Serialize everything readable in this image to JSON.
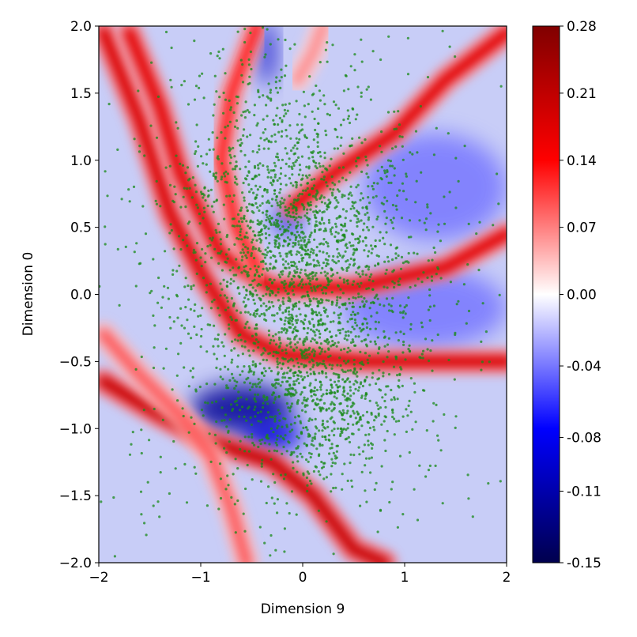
{
  "chart_data": {
    "type": "heatmap",
    "title": "",
    "xlabel": "Dimension 9",
    "ylabel": "Dimension 0",
    "xlim": [
      -2,
      2
    ],
    "ylim": [
      -2,
      2
    ],
    "x_ticks": [
      "−2",
      "−1",
      "0",
      "1",
      "2"
    ],
    "y_ticks": [
      "−2.0",
      "−1.5",
      "−1.0",
      "−0.5",
      "0.0",
      "0.5",
      "1.0",
      "1.5",
      "2.0"
    ],
    "colormap": "seismic",
    "colorbar": {
      "min": -0.15,
      "max": 0.28,
      "tick_values": [
        0.28,
        0.21,
        0.14,
        0.07,
        0.0,
        -0.04,
        -0.08,
        -0.11,
        -0.15
      ],
      "tick_labels": [
        "0.28",
        "0.21",
        "0.14",
        "0.07",
        "0.00",
        "-0.04",
        "-0.08",
        "-0.11",
        "-0.15"
      ]
    },
    "grid": false,
    "scatter_color": "#1a8a1a",
    "ridges": [
      {
        "points": [
          [
            -1.95,
            1.95
          ],
          [
            -1.6,
            1.3
          ],
          [
            -1.3,
            0.6
          ],
          [
            -0.95,
            0.1
          ],
          [
            -0.6,
            -0.3
          ],
          [
            -0.2,
            -0.45
          ],
          [
            0.6,
            -0.5
          ],
          [
            2.0,
            -0.5
          ]
        ],
        "value": 0.18
      },
      {
        "points": [
          [
            -1.7,
            1.95
          ],
          [
            -1.4,
            1.4
          ],
          [
            -1.2,
            0.9
          ],
          [
            -0.8,
            0.3
          ],
          [
            -0.3,
            0.05
          ],
          [
            0.5,
            0.05
          ],
          [
            1.4,
            0.2
          ],
          [
            2.0,
            0.45
          ]
        ],
        "value": 0.17
      },
      {
        "points": [
          [
            -0.45,
            2.0
          ],
          [
            -0.7,
            1.5
          ],
          [
            -0.8,
            1.0
          ],
          [
            -0.65,
            0.5
          ],
          [
            -0.45,
            0.2
          ]
        ],
        "value": 0.12
      },
      {
        "points": [
          [
            -0.1,
            0.65
          ],
          [
            0.3,
            0.9
          ],
          [
            0.9,
            1.2
          ],
          [
            1.4,
            1.6
          ],
          [
            2.0,
            1.95
          ]
        ],
        "value": 0.17
      },
      {
        "points": [
          [
            -1.95,
            -0.65
          ],
          [
            -1.4,
            -0.9
          ],
          [
            -0.9,
            -1.1
          ],
          [
            -0.3,
            -1.25
          ],
          [
            0.1,
            -1.5
          ],
          [
            0.5,
            -1.9
          ],
          [
            0.8,
            -2.0
          ]
        ],
        "value": 0.2
      },
      {
        "points": [
          [
            -1.95,
            -0.3
          ],
          [
            -1.6,
            -0.6
          ],
          [
            -1.2,
            -0.9
          ],
          [
            -0.9,
            -1.2
          ],
          [
            -0.7,
            -1.6
          ],
          [
            -0.55,
            -2.0
          ]
        ],
        "value": 0.09
      },
      {
        "points": [
          [
            -0.05,
            1.6
          ],
          [
            0.1,
            1.8
          ],
          [
            0.2,
            2.0
          ]
        ],
        "value": 0.06
      }
    ],
    "blue_regions": [
      {
        "center": [
          -0.6,
          -0.85
        ],
        "rx": 0.5,
        "ry": 0.18,
        "value": -0.12
      },
      {
        "center": [
          -0.3,
          -1.05
        ],
        "rx": 0.3,
        "ry": 0.12,
        "value": -0.09
      },
      {
        "center": [
          -0.35,
          1.8
        ],
        "rx": 0.08,
        "ry": 0.25,
        "value": -0.1
      },
      {
        "center": [
          -0.15,
          0.55
        ],
        "rx": 0.12,
        "ry": 0.1,
        "value": -0.09
      },
      {
        "center": [
          1.2,
          -0.1
        ],
        "rx": 0.8,
        "ry": 0.3,
        "value": -0.04
      },
      {
        "center": [
          1.3,
          0.8
        ],
        "rx": 0.7,
        "ry": 0.4,
        "value": -0.04
      }
    ],
    "scatter_clusters": [
      {
        "center": [
          0.0,
          0.1
        ],
        "sx": 0.55,
        "sy": 0.55,
        "weight": 0.45
      },
      {
        "center": [
          0.1,
          -0.8
        ],
        "sx": 0.45,
        "sy": 0.35,
        "weight": 0.2
      },
      {
        "center": [
          -0.3,
          0.9
        ],
        "sx": 0.5,
        "sy": 0.5,
        "weight": 0.15
      },
      {
        "center": [
          0.0,
          0.0
        ],
        "sx": 1.1,
        "sy": 1.1,
        "weight": 0.2
      }
    ]
  }
}
